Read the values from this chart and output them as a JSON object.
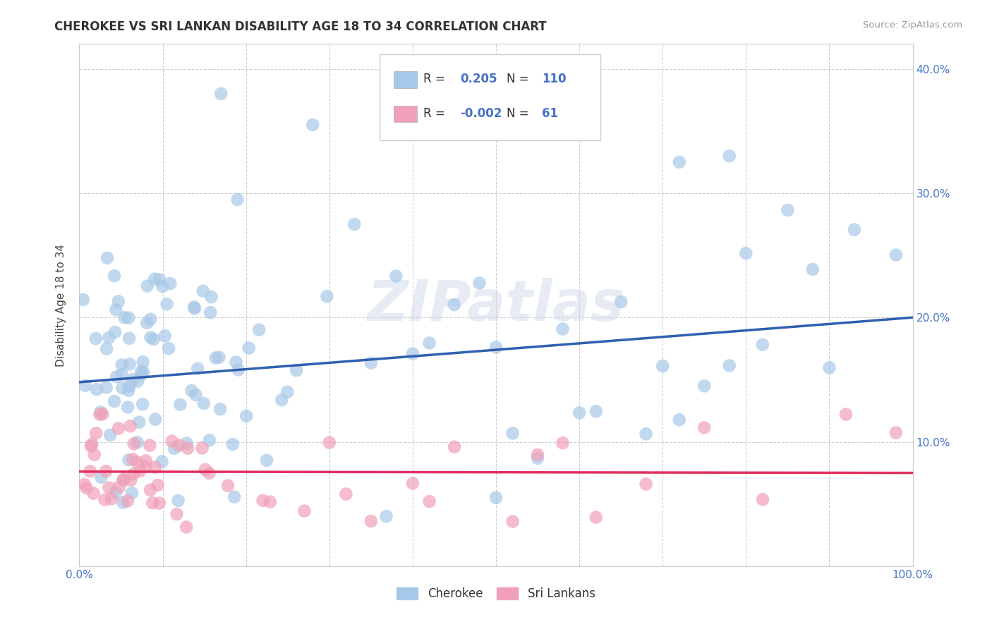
{
  "title": "CHEROKEE VS SRI LANKAN DISABILITY AGE 18 TO 34 CORRELATION CHART",
  "source": "Source: ZipAtlas.com",
  "ylabel": "Disability Age 18 to 34",
  "xlim": [
    0.0,
    1.0
  ],
  "ylim": [
    0.0,
    0.42
  ],
  "xticks": [
    0.0,
    0.1,
    0.2,
    0.3,
    0.4,
    0.5,
    0.6,
    0.7,
    0.8,
    0.9,
    1.0
  ],
  "yticks": [
    0.0,
    0.1,
    0.2,
    0.3,
    0.4
  ],
  "xticklabels": [
    "0.0%",
    "",
    "",
    "",
    "",
    "",
    "",
    "",
    "",
    "",
    "100.0%"
  ],
  "yticklabels_right": [
    "",
    "10.0%",
    "20.0%",
    "30.0%",
    "40.0%"
  ],
  "cherokee_R": "0.205",
  "cherokee_N": "110",
  "srilanka_R": "-0.002",
  "srilanka_N": "61",
  "cherokee_color": "#a8c8e8",
  "srilanka_color": "#f0a0b8",
  "cherokee_line_color": "#3060b0",
  "srilanka_line_color": "#e03060",
  "grid_color": "#bbbbbb",
  "background_color": "#ffffff",
  "watermark": "ZIPatlas",
  "cherokee_line_x0": 0.0,
  "cherokee_line_y0": 0.148,
  "cherokee_line_x1": 1.0,
  "cherokee_line_y1": 0.2,
  "srilanka_line_x0": 0.0,
  "srilanka_line_y0": 0.076,
  "srilanka_line_x1": 1.0,
  "srilanka_line_y1": 0.075
}
